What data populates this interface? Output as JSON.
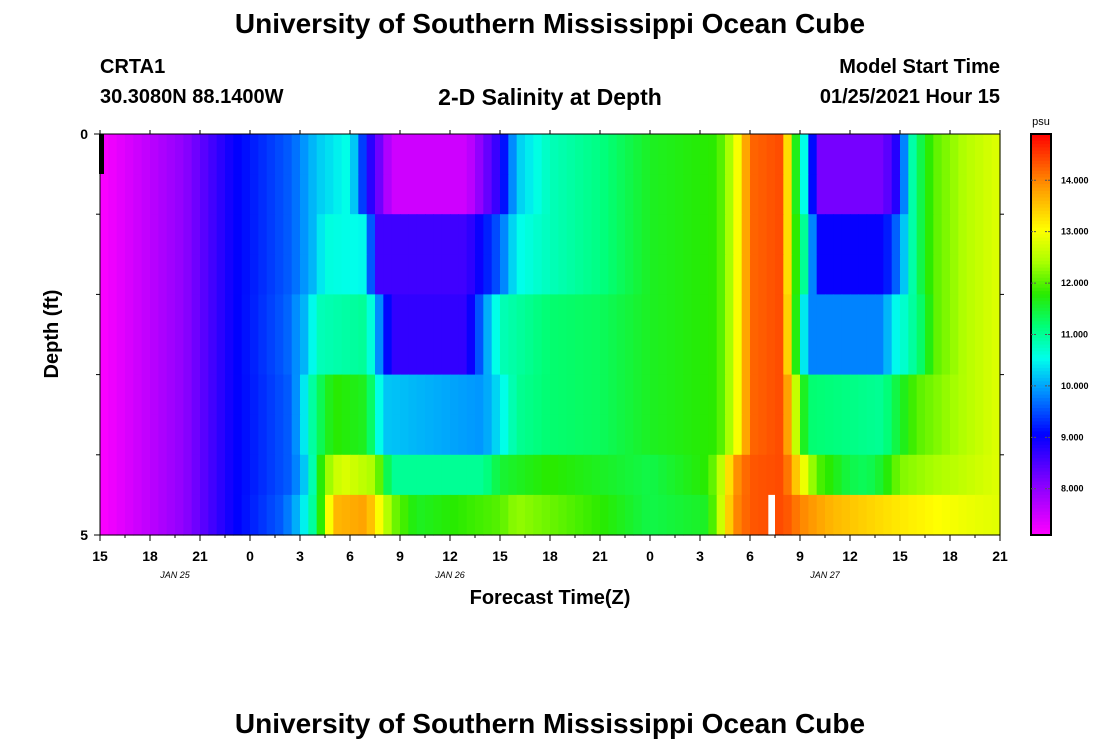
{
  "page": {
    "title_top": "University of Southern Mississippi Ocean Cube",
    "title_bottom": "University of Southern Mississippi Ocean Cube",
    "station_id": "CRTA1",
    "station_coords": "30.3080N 88.1400W",
    "plot_title": "2-D Salinity at Depth",
    "start_label": "Model Start Time",
    "start_value": "01/25/2021 Hour 15"
  },
  "chart_data": {
    "type": "heatmap",
    "title": "2-D Salinity at Depth",
    "xlabel": "Forecast Time(Z)",
    "ylabel": "Depth (ft)",
    "x_range_hours": [
      0,
      54
    ],
    "y_range_ft": [
      0,
      5
    ],
    "x_tick_labels": [
      "15",
      "18",
      "21",
      "0",
      "3",
      "6",
      "9",
      "12",
      "15",
      "18",
      "21",
      "0",
      "3",
      "6",
      "9",
      "12",
      "15",
      "18",
      "21"
    ],
    "y_tick_labels": [
      "0",
      "5"
    ],
    "date_labels": [
      {
        "hour": 4.5,
        "text": "JAN  25"
      },
      {
        "hour": 21,
        "text": "JAN  26"
      },
      {
        "hour": 43.5,
        "text": "JAN  27"
      }
    ],
    "colorbar": {
      "unit": "psu",
      "min": 7.1,
      "max": 14.9,
      "ticks": [
        "8.000",
        "9.000",
        "10.000",
        "11.000",
        "12.000",
        "13.000",
        "14.000"
      ]
    },
    "depth_layers_ft": [
      0.25,
      0.75,
      1.25,
      1.75,
      2.25,
      2.75,
      3.25,
      3.75,
      4.25,
      4.75
    ],
    "salinity_psu": [
      [
        [
          0,
          7.1
        ],
        [
          5,
          8.0
        ],
        [
          8,
          9.0
        ],
        [
          11.5,
          9.6
        ],
        [
          13,
          10.2
        ],
        [
          15,
          10.6
        ],
        [
          16,
          9.0
        ],
        [
          17.5,
          7.5
        ],
        [
          22,
          7.5
        ],
        [
          24,
          8.8
        ],
        [
          25,
          10.2
        ],
        [
          27,
          10.8
        ],
        [
          30,
          11.1
        ],
        [
          33,
          11.6
        ],
        [
          37,
          11.8
        ],
        [
          38,
          12.6
        ],
        [
          38.6,
          13.5
        ],
        [
          39,
          14.2
        ],
        [
          41,
          14.4
        ],
        [
          41.5,
          12.2
        ],
        [
          42.5,
          10.0
        ],
        [
          43,
          8.2
        ],
        [
          47,
          8.2
        ],
        [
          48,
          9.0
        ],
        [
          48.5,
          10.6
        ],
        [
          49,
          11.2
        ],
        [
          50,
          12.0
        ],
        [
          52,
          12.5
        ],
        [
          54,
          12.8
        ]
      ],
      [
        [
          0,
          7.1
        ],
        [
          5,
          8.0
        ],
        [
          8,
          9.0
        ],
        [
          11.5,
          9.6
        ],
        [
          13,
          10.2
        ],
        [
          15,
          10.6
        ],
        [
          16,
          9.0
        ],
        [
          17.5,
          7.5
        ],
        [
          22,
          7.5
        ],
        [
          24,
          8.8
        ],
        [
          25,
          10.2
        ],
        [
          27,
          10.8
        ],
        [
          30,
          11.1
        ],
        [
          33,
          11.6
        ],
        [
          37,
          11.8
        ],
        [
          38,
          12.6
        ],
        [
          38.6,
          13.5
        ],
        [
          39,
          14.2
        ],
        [
          41,
          14.4
        ],
        [
          41.5,
          12.2
        ],
        [
          42.5,
          10.0
        ],
        [
          43,
          8.2
        ],
        [
          47,
          8.2
        ],
        [
          48,
          9.0
        ],
        [
          48.5,
          10.6
        ],
        [
          49,
          11.2
        ],
        [
          50,
          12.0
        ],
        [
          52,
          12.5
        ],
        [
          54,
          12.8
        ]
      ],
      [
        [
          0,
          7.1
        ],
        [
          5,
          8.0
        ],
        [
          8,
          9.0
        ],
        [
          11.5,
          9.6
        ],
        [
          13,
          10.2
        ],
        [
          13.5,
          10.6
        ],
        [
          16,
          10.5
        ],
        [
          16.5,
          8.6
        ],
        [
          22,
          8.6
        ],
        [
          24,
          9.6
        ],
        [
          25,
          10.5
        ],
        [
          27,
          10.8
        ],
        [
          30,
          11.1
        ],
        [
          33,
          11.6
        ],
        [
          37,
          11.8
        ],
        [
          38,
          12.6
        ],
        [
          38.6,
          13.5
        ],
        [
          39,
          14.2
        ],
        [
          41,
          14.4
        ],
        [
          41.5,
          12.2
        ],
        [
          42.5,
          10.6
        ],
        [
          43,
          9.0
        ],
        [
          47,
          9.0
        ],
        [
          48,
          9.8
        ],
        [
          48.5,
          10.6
        ],
        [
          49,
          11.2
        ],
        [
          50,
          12.0
        ],
        [
          52,
          12.5
        ],
        [
          54,
          12.8
        ]
      ],
      [
        [
          0,
          7.1
        ],
        [
          5,
          8.0
        ],
        [
          8,
          9.0
        ],
        [
          11.5,
          9.6
        ],
        [
          13,
          10.2
        ],
        [
          13.5,
          10.6
        ],
        [
          16,
          10.5
        ],
        [
          16.5,
          8.6
        ],
        [
          22,
          8.6
        ],
        [
          24,
          9.6
        ],
        [
          25,
          10.5
        ],
        [
          27,
          10.8
        ],
        [
          30,
          11.1
        ],
        [
          33,
          11.6
        ],
        [
          37,
          11.8
        ],
        [
          38,
          12.6
        ],
        [
          38.6,
          13.5
        ],
        [
          39,
          14.2
        ],
        [
          41,
          14.4
        ],
        [
          41.5,
          12.2
        ],
        [
          42.5,
          10.6
        ],
        [
          43,
          9.0
        ],
        [
          47,
          9.0
        ],
        [
          48,
          9.8
        ],
        [
          48.5,
          10.6
        ],
        [
          49,
          11.2
        ],
        [
          50,
          12.0
        ],
        [
          52,
          12.5
        ],
        [
          54,
          12.8
        ]
      ],
      [
        [
          0,
          7.1
        ],
        [
          5,
          8.0
        ],
        [
          8,
          9.0
        ],
        [
          11.2,
          9.6
        ],
        [
          12.5,
          10.2
        ],
        [
          13,
          10.8
        ],
        [
          16,
          11.0
        ],
        [
          17.5,
          8.7
        ],
        [
          22,
          8.7
        ],
        [
          23,
          9.8
        ],
        [
          24,
          10.8
        ],
        [
          27,
          11.2
        ],
        [
          30,
          11.3
        ],
        [
          33,
          11.6
        ],
        [
          37,
          11.8
        ],
        [
          38,
          12.6
        ],
        [
          38.6,
          13.5
        ],
        [
          39,
          14.2
        ],
        [
          41,
          14.4
        ],
        [
          41.5,
          12.4
        ],
        [
          42,
          11.0
        ],
        [
          42.5,
          9.8
        ],
        [
          47,
          9.8
        ],
        [
          47.5,
          10.4
        ],
        [
          48.5,
          10.8
        ],
        [
          49.5,
          11.4
        ],
        [
          50,
          12.0
        ],
        [
          52,
          12.5
        ],
        [
          54,
          12.8
        ]
      ],
      [
        [
          0,
          7.1
        ],
        [
          5,
          8.0
        ],
        [
          8,
          9.0
        ],
        [
          11.2,
          9.6
        ],
        [
          12.5,
          10.2
        ],
        [
          13,
          10.8
        ],
        [
          16,
          11.0
        ],
        [
          17.5,
          8.7
        ],
        [
          22,
          8.7
        ],
        [
          23,
          9.8
        ],
        [
          24,
          10.8
        ],
        [
          27,
          11.2
        ],
        [
          30,
          11.3
        ],
        [
          33,
          11.6
        ],
        [
          37,
          11.8
        ],
        [
          38,
          12.6
        ],
        [
          38.6,
          13.5
        ],
        [
          39,
          14.2
        ],
        [
          41,
          14.4
        ],
        [
          41.5,
          12.4
        ],
        [
          42,
          11.0
        ],
        [
          42.5,
          9.8
        ],
        [
          47,
          9.8
        ],
        [
          47.5,
          10.4
        ],
        [
          48.5,
          10.8
        ],
        [
          49.5,
          11.4
        ],
        [
          50,
          12.0
        ],
        [
          52,
          12.5
        ],
        [
          54,
          12.8
        ]
      ],
      [
        [
          0,
          7.1
        ],
        [
          5,
          8.0
        ],
        [
          8,
          9.0
        ],
        [
          11.5,
          9.6
        ],
        [
          13,
          11.2
        ],
        [
          14,
          11.8
        ],
        [
          16,
          11.6
        ],
        [
          17,
          10.2
        ],
        [
          23,
          9.9
        ],
        [
          24,
          10.4
        ],
        [
          25,
          11.0
        ],
        [
          27,
          11.2
        ],
        [
          30,
          11.3
        ],
        [
          33,
          11.6
        ],
        [
          37,
          11.8
        ],
        [
          38,
          12.6
        ],
        [
          38.6,
          13.5
        ],
        [
          39,
          14.2
        ],
        [
          41,
          14.4
        ],
        [
          42,
          12.0
        ],
        [
          42.5,
          11.2
        ],
        [
          47,
          11.0
        ],
        [
          47.5,
          11.3
        ],
        [
          49,
          12.0
        ],
        [
          52,
          12.5
        ],
        [
          54,
          12.8
        ]
      ],
      [
        [
          0,
          7.1
        ],
        [
          5,
          8.0
        ],
        [
          8,
          9.0
        ],
        [
          11.5,
          9.6
        ],
        [
          13,
          11.2
        ],
        [
          14,
          11.8
        ],
        [
          16,
          11.6
        ],
        [
          17,
          10.2
        ],
        [
          23,
          9.9
        ],
        [
          24,
          10.4
        ],
        [
          25,
          11.0
        ],
        [
          27,
          11.2
        ],
        [
          30,
          11.3
        ],
        [
          33,
          11.6
        ],
        [
          37,
          11.8
        ],
        [
          38,
          12.6
        ],
        [
          38.6,
          13.5
        ],
        [
          39,
          14.2
        ],
        [
          41,
          14.4
        ],
        [
          42,
          12.0
        ],
        [
          42.5,
          11.2
        ],
        [
          47,
          11.0
        ],
        [
          47.5,
          11.3
        ],
        [
          49,
          12.0
        ],
        [
          52,
          12.5
        ],
        [
          54,
          12.8
        ]
      ],
      [
        [
          0,
          7.1
        ],
        [
          5,
          8.0
        ],
        [
          8,
          9.0
        ],
        [
          11.5,
          9.6
        ],
        [
          12.5,
          10.4
        ],
        [
          13.5,
          12.2
        ],
        [
          14.5,
          12.8
        ],
        [
          16.5,
          12.4
        ],
        [
          17.5,
          11.0
        ],
        [
          23,
          11.0
        ],
        [
          24,
          11.5
        ],
        [
          27,
          11.8
        ],
        [
          30,
          11.6
        ],
        [
          33,
          11.4
        ],
        [
          36.5,
          11.8
        ],
        [
          37.5,
          12.8
        ],
        [
          38,
          13.8
        ],
        [
          39,
          14.3
        ],
        [
          41,
          14.4
        ],
        [
          42,
          13.2
        ],
        [
          43,
          12.0
        ],
        [
          45,
          11.4
        ],
        [
          46,
          11.3
        ],
        [
          47,
          11.6
        ],
        [
          48,
          12.2
        ],
        [
          52,
          12.6
        ],
        [
          54,
          12.8
        ]
      ],
      [
        [
          0,
          7.1
        ],
        [
          5,
          8.0
        ],
        [
          8,
          9.0
        ],
        [
          11,
          9.6
        ],
        [
          12,
          10.2
        ],
        [
          13,
          11.2
        ],
        [
          14,
          13.6
        ],
        [
          16,
          13.8
        ],
        [
          17.5,
          12.2
        ],
        [
          19,
          11.6
        ],
        [
          24,
          12.0
        ],
        [
          25,
          12.3
        ],
        [
          30,
          11.8
        ],
        [
          33,
          11.4
        ],
        [
          36.5,
          11.6
        ],
        [
          37.5,
          13.0
        ],
        [
          38,
          13.9
        ],
        [
          39,
          14.3
        ],
        [
          41,
          14.4
        ],
        [
          42,
          14.0
        ],
        [
          44,
          13.6
        ],
        [
          46,
          13.4
        ],
        [
          48,
          13.2
        ],
        [
          52,
          12.9
        ],
        [
          54,
          12.8
        ]
      ]
    ],
    "missing_gap_hours": [
      40.1,
      40.5
    ]
  }
}
